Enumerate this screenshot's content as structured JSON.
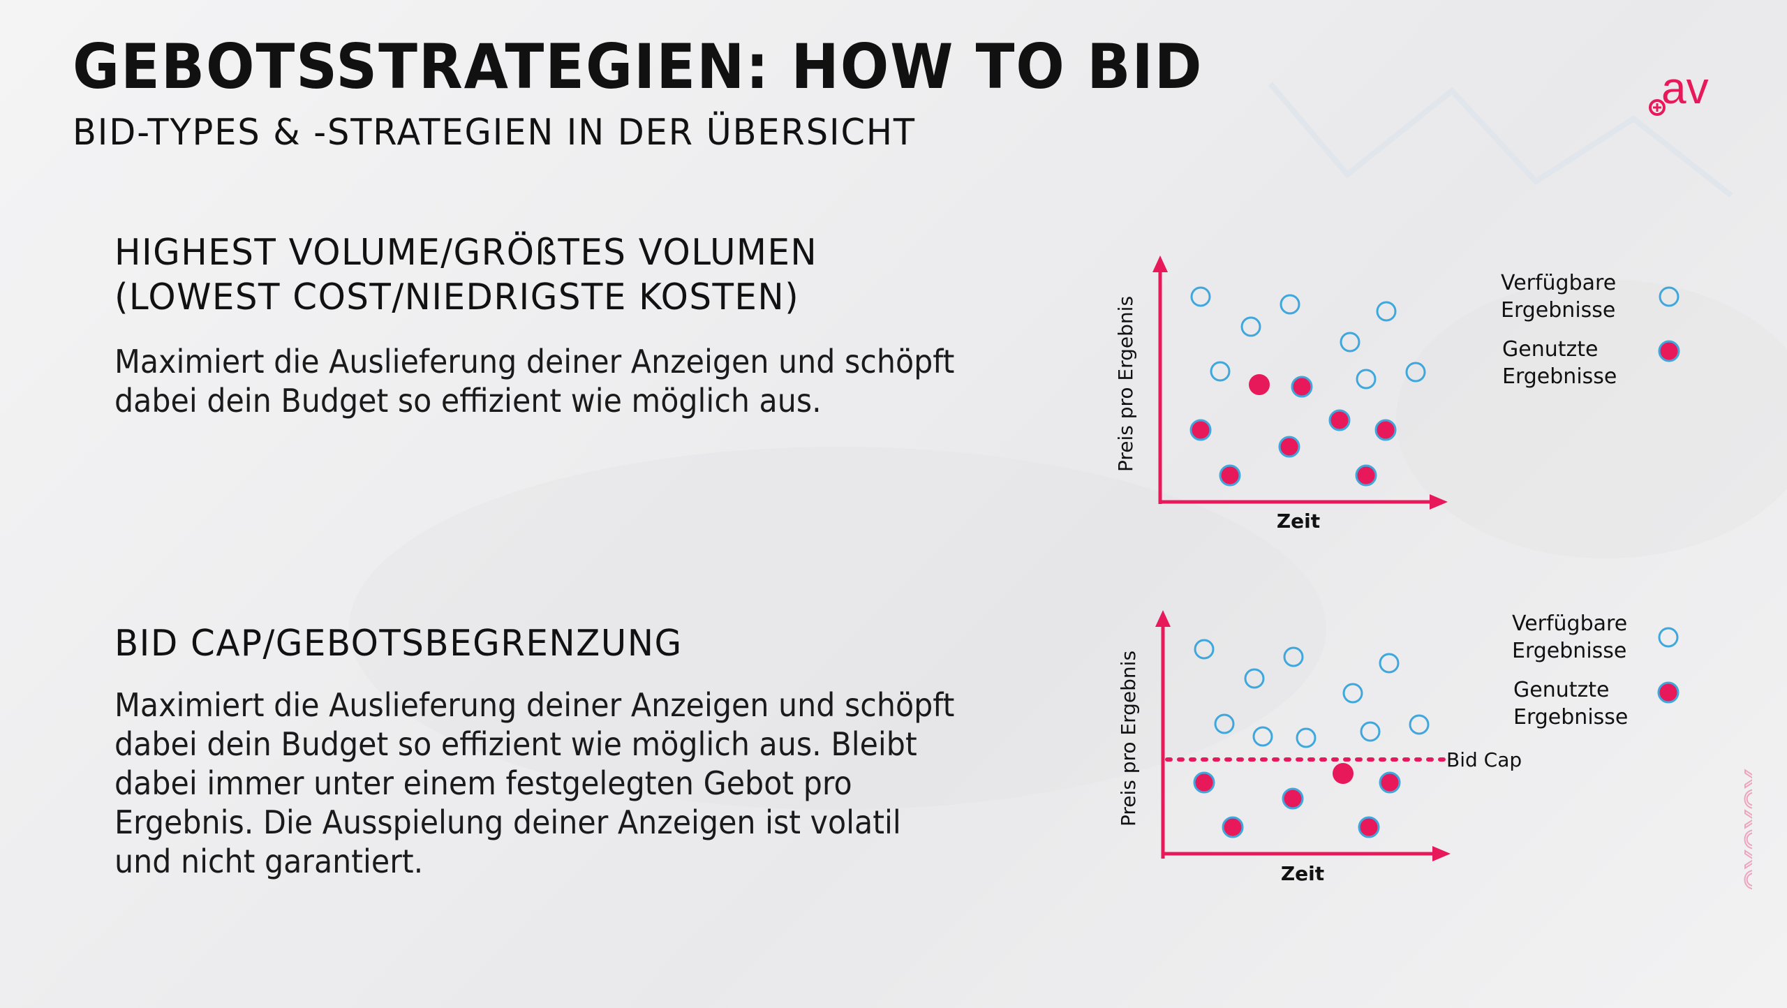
{
  "header": {
    "title": "GEBOTSSTRATEGIEN: HOW TO BID",
    "subtitle": "BID-TYPES & -STRATEGIEN IN DER ÜBERSICHT",
    "logo_text": "av"
  },
  "sections": [
    {
      "heading_lines": [
        "HIGHEST VOLUME/GRÖßTES VOLUMEN",
        "(LOWEST COST/NIEDRIGSTE KOSTEN)"
      ],
      "body_lines": [
        "Maximiert die Auslieferung deiner Anzeigen und schöpft",
        "dabei dein Budget so effizient wie möglich aus."
      ]
    },
    {
      "heading_lines": [
        "BID CAP/GEBOTSBEGRENZUNG"
      ],
      "body_lines": [
        "Maximiert die Auslieferung deiner Anzeigen und schöpft",
        "dabei dein Budget so effizient wie möglich aus. Bleibt",
        "dabei immer unter einem festgelegten Gebot pro",
        "Ergebnis. Die Ausspielung deiner Anzeigen ist volatil",
        "und nicht garantiert."
      ]
    }
  ],
  "diagrams": [
    {
      "ylabel": "Preis pro Ergebnis",
      "xlabel": "Zeit",
      "legend": {
        "available_line1": "Verfügbare",
        "available_line2": "Ergebnisse",
        "used_line1": "Genutzte",
        "used_line2": "Ergebnisse"
      },
      "bid_cap_label": ""
    },
    {
      "ylabel": "Preis pro Ergebnis",
      "xlabel": "Zeit",
      "legend": {
        "available_line1": "Verfügbare",
        "available_line2": "Ergebnisse",
        "used_line1": "Genutzte",
        "used_line2": "Ergebnisse"
      },
      "bid_cap_label": "Bid Cap"
    }
  ],
  "colors": {
    "accent": "#e8195a",
    "available": "#3fa7dc",
    "text": "#111111"
  },
  "decoration_text": "XOXOXO"
}
